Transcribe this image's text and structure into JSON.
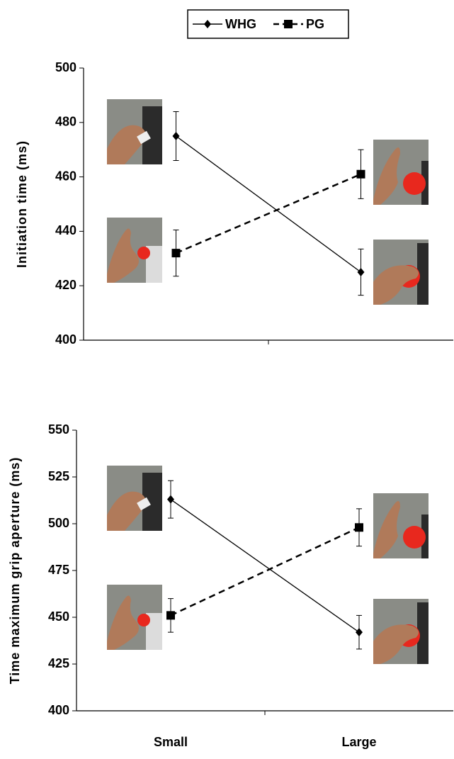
{
  "chart_data": [
    {
      "type": "line",
      "ylabel": "Initiation time (ms)",
      "categories": [
        null,
        null
      ],
      "ylim": [
        400,
        500
      ],
      "yticks": [
        400,
        420,
        440,
        460,
        480,
        500
      ],
      "legend": "top",
      "series": [
        {
          "name": "WHG",
          "color": "#000000",
          "marker": "diamond",
          "dashed": false,
          "values": [
            475,
            425
          ],
          "errors": [
            9,
            8.5
          ]
        },
        {
          "name": "PG",
          "color": "#000000",
          "marker": "square",
          "dashed": true,
          "values": [
            432,
            461
          ],
          "errors": [
            8.5,
            9
          ]
        }
      ]
    },
    {
      "type": "line",
      "ylabel": "Time maximum grip aperture (ms)",
      "categories": [
        "Small",
        "Large"
      ],
      "ylim": [
        400,
        550
      ],
      "yticks": [
        400,
        425,
        450,
        475,
        500,
        525,
        550
      ],
      "series": [
        {
          "color": "#000000",
          "marker": "diamond",
          "dashed": false,
          "values": [
            513,
            442
          ],
          "errors": [
            10,
            9
          ]
        },
        {
          "color": "#000000",
          "marker": "square",
          "dashed": true,
          "values": [
            451,
            498
          ],
          "errors": [
            9,
            10
          ]
        }
      ]
    }
  ]
}
